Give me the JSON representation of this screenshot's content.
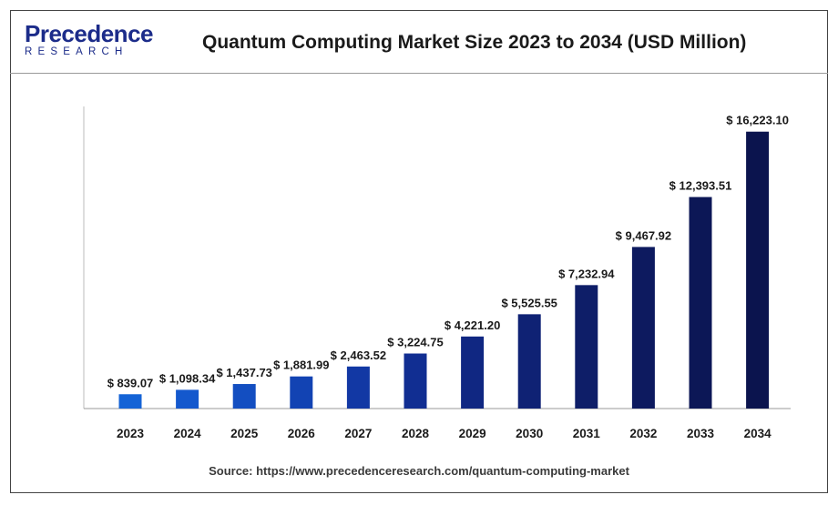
{
  "header": {
    "logo_main": "Precedence",
    "logo_sub": "RESEARCH",
    "title": "Quantum Computing Market Size 2023 to 2034 (USD Million)"
  },
  "footer": {
    "source": "Source: https://www.precedenceresearch.com/quantum-computing-market"
  },
  "chart_data": {
    "type": "bar",
    "title": "Quantum Computing Market Size 2023 to 2034 (USD Million)",
    "xlabel": "",
    "ylabel": "",
    "ylim": [
      0,
      17700
    ],
    "grid": false,
    "categories": [
      "2023",
      "2024",
      "2025",
      "2026",
      "2027",
      "2028",
      "2029",
      "2030",
      "2031",
      "2032",
      "2033",
      "2034"
    ],
    "values": [
      839.07,
      1098.34,
      1437.73,
      1881.99,
      2463.52,
      3224.75,
      4221.2,
      5525.55,
      7232.94,
      9467.92,
      12393.51,
      16223.1
    ],
    "value_labels": [
      "$ 839.07",
      "$ 1,098.34",
      "$ 1,437.73",
      "$ 1,881.99",
      "$ 2,463.52",
      "$ 3,224.75",
      "$ 4,221.20",
      "$ 5,525.55",
      "$ 7,232.94",
      "$ 9,467.92",
      "$ 12,393.51",
      "$ 16,223.10"
    ],
    "bar_colors": [
      "#1463d6",
      "#1458cd",
      "#134ec1",
      "#1243b3",
      "#1238a4",
      "#112e92",
      "#102782",
      "#0f2274",
      "#0e1e68",
      "#0d1a5f",
      "#0c1756",
      "#0b144e"
    ],
    "label_color": "#1a1a1a"
  }
}
